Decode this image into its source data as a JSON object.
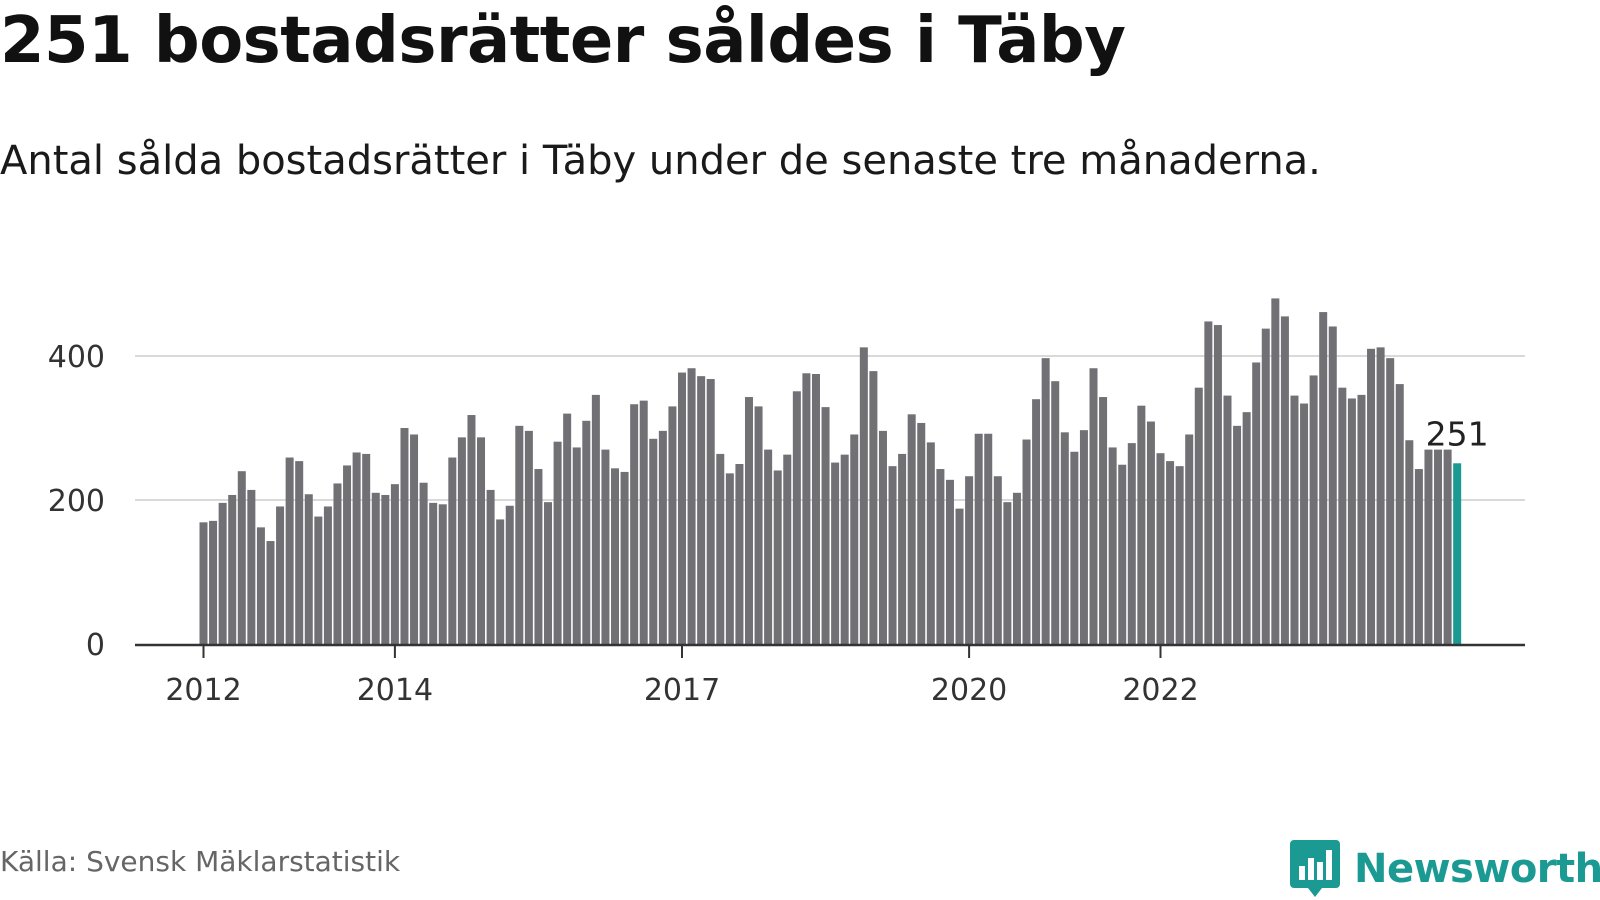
{
  "title": "251 bostadsrätter såldes i Täby",
  "subtitle": "Antal sålda bostadsrätter i Täby under de senaste tre månaderna.",
  "source": "Källa: Svensk Mäklarstatistik",
  "brand": "Newsworthy",
  "colors": {
    "bar": "#707075",
    "highlight": "#1a9a92",
    "grid": "#d9d9d9",
    "axis": "#333333",
    "brand": "#1a9a92"
  },
  "icons": {
    "logo": "newsworthy-bar-chart-logo-icon"
  },
  "chart_data": {
    "type": "bar",
    "title": "251 bostadsrätter såldes i Täby",
    "subtitle": "Antal sålda bostadsrätter i Täby under de senaste tre månaderna.",
    "ylim": [
      0,
      500
    ],
    "yticks": [
      0,
      200,
      400
    ],
    "x_tick_labels": [
      "2012",
      "2014",
      "2017",
      "2020",
      "2022"
    ],
    "x_tick_index": [
      0,
      20,
      50,
      80,
      100
    ],
    "grid": true,
    "last_value_label": "251",
    "highlight_last": true,
    "values": [
      169,
      171,
      196,
      207,
      240,
      214,
      162,
      143,
      191,
      259,
      254,
      208,
      177,
      191,
      223,
      248,
      266,
      264,
      210,
      207,
      222,
      300,
      291,
      224,
      196,
      194,
      259,
      287,
      318,
      287,
      214,
      173,
      192,
      303,
      296,
      243,
      197,
      281,
      320,
      273,
      310,
      346,
      270,
      244,
      239,
      333,
      338,
      285,
      296,
      330,
      377,
      383,
      372,
      368,
      264,
      237,
      250,
      343,
      330,
      270,
      241,
      263,
      351,
      376,
      375,
      329,
      252,
      263,
      291,
      412,
      379,
      296,
      247,
      264,
      319,
      307,
      280,
      243,
      228,
      188,
      233,
      292,
      292,
      233,
      197,
      210,
      284,
      340,
      397,
      365,
      294,
      267,
      297,
      383,
      343,
      273,
      249,
      279,
      331,
      309,
      265,
      254,
      247,
      291,
      356,
      448,
      443,
      345,
      303,
      322,
      391,
      438,
      480,
      455,
      345,
      334,
      373,
      461,
      441,
      356,
      341,
      346,
      410,
      412,
      397,
      361,
      283,
      243,
      270,
      270,
      270,
      251
    ]
  }
}
